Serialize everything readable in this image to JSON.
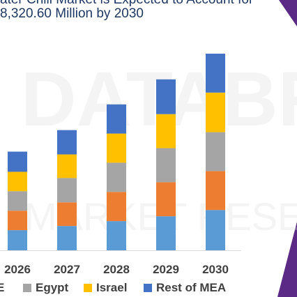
{
  "title_line1": "ater Chill Market is Expected to Account for",
  "title_line2": "8,320.60 Million by 2030",
  "colors": {
    "title": "#1f3864",
    "accent_triangle": "#5b2a86",
    "axis_text": "#404040"
  },
  "watermark": [
    "DATABRIDGE",
    "MARKET RESEARCH"
  ],
  "chart_data": {
    "type": "bar",
    "stacked": true,
    "categories": [
      "2026",
      "2027",
      "2028",
      "2029",
      "2030"
    ],
    "ylim": [
      0,
      290
    ],
    "series": [
      {
        "name": "",
        "color": "#5b9bd5",
        "values": [
          29,
          35,
          42,
          49,
          58
        ]
      },
      {
        "name": "",
        "color": "#ed7d31",
        "values": [
          28,
          34,
          42,
          49,
          56
        ]
      },
      {
        "name": "Egypt",
        "color": "#a5a5a5",
        "values": [
          28,
          35,
          42,
          49,
          56
        ]
      },
      {
        "name": "Israel",
        "color": "#ffc000",
        "values": [
          28,
          34,
          42,
          49,
          57
        ]
      },
      {
        "name": "Rest of MEA",
        "color": "#4472c4",
        "values": [
          29,
          35,
          42,
          50,
          56
        ]
      }
    ],
    "legend": {
      "position": "bottom",
      "items": [
        {
          "label": "E",
          "color": "#ed7d31"
        },
        {
          "label": "Egypt",
          "color": "#a5a5a5"
        },
        {
          "label": "Israel",
          "color": "#ffc000"
        },
        {
          "label": "Rest of MEA",
          "color": "#4472c4"
        }
      ]
    }
  }
}
